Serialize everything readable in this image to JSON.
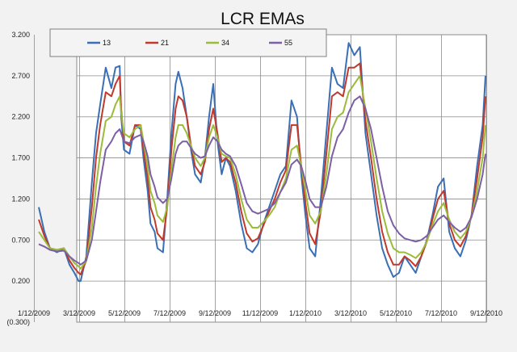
{
  "chart_data": {
    "type": "line",
    "title": "LCR EMAs",
    "xlabel": "",
    "ylabel": "",
    "ylim": [
      -0.3,
      3.2
    ],
    "y_ticks": [
      "3.200",
      "2.700",
      "2.200",
      "1.700",
      "1.200",
      "0.700",
      "0.200",
      "(0.300)"
    ],
    "y_tick_values": [
      3.2,
      2.7,
      2.2,
      1.7,
      1.2,
      0.7,
      0.2,
      -0.3
    ],
    "x_ticks": [
      "1/12/2009",
      "3/12/2009",
      "5/12/2009",
      "7/12/2009",
      "9/12/2009",
      "11/12/2009",
      "1/12/2010",
      "3/12/2010",
      "5/12/2010",
      "7/12/2010",
      "9/12/2010"
    ],
    "xlim": [
      0,
      640
    ],
    "grid": true,
    "legend_position": "top",
    "x_unit": "days since 1/12/2009",
    "series": [
      {
        "name": "13",
        "color": "#3a6fb5",
        "x": [
          0,
          8,
          16,
          26,
          36,
          44,
          51,
          57,
          60,
          68,
          76,
          82,
          88,
          96,
          104,
          110,
          116,
          118,
          122,
          130,
          138,
          146,
          150,
          156,
          160,
          166,
          170,
          178,
          184,
          190,
          196,
          200,
          206,
          212,
          218,
          224,
          232,
          238,
          244,
          250,
          256,
          262,
          268,
          274,
          282,
          290,
          298,
          306,
          314,
          322,
          330,
          338,
          346,
          354,
          362,
          370,
          376,
          382,
          388,
          396,
          404,
          412,
          420,
          428,
          436,
          444,
          452,
          460,
          468,
          476,
          484,
          492,
          500,
          508,
          516,
          524,
          532,
          540,
          548,
          556,
          564,
          572,
          580,
          588,
          596,
          604,
          612,
          620,
          628,
          636,
          640
        ],
        "values": [
          1.1,
          0.8,
          0.6,
          0.55,
          0.6,
          0.4,
          0.3,
          0.2,
          0.2,
          0.5,
          1.4,
          2.0,
          2.35,
          2.8,
          2.55,
          2.8,
          2.82,
          2.2,
          1.8,
          1.75,
          2.1,
          2.05,
          1.7,
          1.3,
          0.9,
          0.8,
          0.6,
          0.55,
          1.2,
          2.0,
          2.6,
          2.75,
          2.55,
          2.2,
          1.8,
          1.5,
          1.4,
          1.7,
          2.2,
          2.6,
          1.9,
          1.5,
          1.7,
          1.6,
          1.3,
          0.9,
          0.6,
          0.55,
          0.65,
          0.9,
          1.1,
          1.3,
          1.5,
          1.6,
          2.4,
          2.2,
          1.5,
          1.0,
          0.6,
          0.5,
          1.2,
          2.0,
          2.8,
          2.6,
          2.55,
          3.1,
          2.95,
          3.05,
          2.0,
          1.5,
          1.0,
          0.6,
          0.4,
          0.25,
          0.3,
          0.5,
          0.4,
          0.3,
          0.5,
          0.7,
          1.0,
          1.35,
          1.45,
          0.8,
          0.6,
          0.5,
          0.7,
          1.0,
          1.6,
          2.1,
          2.7
        ]
      },
      {
        "name": "21",
        "color": "#c0392b",
        "x": [
          0,
          8,
          16,
          26,
          36,
          44,
          51,
          57,
          60,
          68,
          76,
          82,
          88,
          96,
          104,
          110,
          116,
          118,
          122,
          130,
          138,
          146,
          150,
          156,
          160,
          166,
          170,
          178,
          184,
          190,
          196,
          200,
          206,
          212,
          218,
          224,
          232,
          238,
          244,
          250,
          256,
          262,
          268,
          274,
          282,
          290,
          298,
          306,
          314,
          322,
          330,
          338,
          346,
          354,
          362,
          370,
          376,
          382,
          388,
          396,
          404,
          412,
          420,
          428,
          436,
          444,
          452,
          460,
          468,
          476,
          484,
          492,
          500,
          508,
          516,
          524,
          532,
          540,
          548,
          556,
          564,
          572,
          580,
          588,
          596,
          604,
          612,
          620,
          628,
          636,
          640
        ],
        "values": [
          0.95,
          0.75,
          0.6,
          0.58,
          0.6,
          0.45,
          0.36,
          0.3,
          0.28,
          0.45,
          1.1,
          1.7,
          2.1,
          2.5,
          2.45,
          2.6,
          2.7,
          2.3,
          1.9,
          1.85,
          2.1,
          2.1,
          1.8,
          1.45,
          1.1,
          0.95,
          0.78,
          0.7,
          1.1,
          1.8,
          2.3,
          2.45,
          2.4,
          2.2,
          1.85,
          1.6,
          1.5,
          1.65,
          2.05,
          2.3,
          2.0,
          1.65,
          1.7,
          1.65,
          1.4,
          1.05,
          0.78,
          0.68,
          0.72,
          0.88,
          1.05,
          1.2,
          1.4,
          1.55,
          2.1,
          2.1,
          1.6,
          1.15,
          0.78,
          0.65,
          1.05,
          1.75,
          2.45,
          2.5,
          2.45,
          2.8,
          2.8,
          2.85,
          2.15,
          1.7,
          1.2,
          0.8,
          0.55,
          0.4,
          0.4,
          0.5,
          0.45,
          0.38,
          0.5,
          0.68,
          0.95,
          1.2,
          1.3,
          0.9,
          0.7,
          0.62,
          0.75,
          1.0,
          1.45,
          1.95,
          2.45
        ]
      },
      {
        "name": "34",
        "color": "#9bbb3a",
        "x": [
          0,
          8,
          16,
          26,
          36,
          44,
          51,
          57,
          60,
          68,
          76,
          82,
          88,
          96,
          104,
          110,
          116,
          118,
          122,
          130,
          138,
          146,
          150,
          156,
          160,
          166,
          170,
          178,
          184,
          190,
          196,
          200,
          206,
          212,
          218,
          224,
          232,
          238,
          244,
          250,
          256,
          262,
          268,
          274,
          282,
          290,
          298,
          306,
          314,
          322,
          330,
          338,
          346,
          354,
          362,
          370,
          376,
          382,
          388,
          396,
          404,
          412,
          420,
          428,
          436,
          444,
          452,
          460,
          468,
          476,
          484,
          492,
          500,
          508,
          516,
          524,
          532,
          540,
          548,
          556,
          564,
          572,
          580,
          588,
          596,
          604,
          612,
          620,
          628,
          636,
          640
        ],
        "values": [
          0.8,
          0.7,
          0.6,
          0.58,
          0.6,
          0.5,
          0.42,
          0.38,
          0.35,
          0.45,
          0.85,
          1.35,
          1.75,
          2.15,
          2.2,
          2.35,
          2.45,
          2.25,
          2.0,
          1.95,
          2.05,
          2.1,
          1.9,
          1.6,
          1.3,
          1.15,
          1.0,
          0.92,
          1.1,
          1.55,
          1.95,
          2.1,
          2.1,
          2.0,
          1.85,
          1.7,
          1.6,
          1.7,
          1.95,
          2.1,
          1.95,
          1.75,
          1.72,
          1.7,
          1.5,
          1.2,
          0.95,
          0.85,
          0.85,
          0.92,
          1.0,
          1.1,
          1.28,
          1.45,
          1.8,
          1.85,
          1.6,
          1.3,
          1.0,
          0.9,
          1.05,
          1.5,
          2.05,
          2.2,
          2.25,
          2.5,
          2.6,
          2.7,
          2.3,
          1.9,
          1.45,
          1.05,
          0.78,
          0.6,
          0.55,
          0.55,
          0.52,
          0.48,
          0.55,
          0.68,
          0.88,
          1.05,
          1.15,
          0.95,
          0.8,
          0.72,
          0.8,
          0.98,
          1.3,
          1.7,
          2.1
        ]
      },
      {
        "name": "55",
        "color": "#7d5fa5",
        "x": [
          0,
          8,
          16,
          26,
          36,
          44,
          51,
          57,
          60,
          68,
          76,
          82,
          88,
          96,
          104,
          110,
          116,
          118,
          122,
          130,
          138,
          146,
          150,
          156,
          160,
          166,
          170,
          178,
          184,
          190,
          196,
          200,
          206,
          212,
          218,
          224,
          232,
          238,
          244,
          250,
          256,
          262,
          268,
          274,
          282,
          290,
          298,
          306,
          314,
          322,
          330,
          338,
          346,
          354,
          362,
          370,
          376,
          382,
          388,
          396,
          404,
          412,
          420,
          428,
          436,
          444,
          452,
          460,
          468,
          476,
          484,
          492,
          500,
          508,
          516,
          524,
          532,
          540,
          548,
          556,
          564,
          572,
          580,
          588,
          596,
          604,
          612,
          620,
          628,
          636,
          640
        ],
        "values": [
          0.65,
          0.62,
          0.58,
          0.56,
          0.57,
          0.5,
          0.45,
          0.42,
          0.4,
          0.45,
          0.7,
          1.05,
          1.4,
          1.8,
          1.9,
          2.0,
          2.05,
          2.0,
          1.9,
          1.88,
          1.95,
          1.98,
          1.9,
          1.72,
          1.5,
          1.35,
          1.22,
          1.15,
          1.2,
          1.45,
          1.75,
          1.85,
          1.9,
          1.9,
          1.82,
          1.75,
          1.7,
          1.72,
          1.85,
          1.95,
          1.9,
          1.8,
          1.75,
          1.72,
          1.6,
          1.38,
          1.15,
          1.05,
          1.02,
          1.05,
          1.08,
          1.15,
          1.28,
          1.4,
          1.62,
          1.68,
          1.6,
          1.42,
          1.2,
          1.1,
          1.1,
          1.35,
          1.72,
          1.95,
          2.05,
          2.25,
          2.4,
          2.45,
          2.3,
          2.05,
          1.7,
          1.35,
          1.05,
          0.88,
          0.78,
          0.72,
          0.7,
          0.68,
          0.7,
          0.75,
          0.85,
          0.95,
          1.0,
          0.92,
          0.85,
          0.8,
          0.85,
          0.98,
          1.2,
          1.5,
          1.75
        ]
      }
    ]
  }
}
